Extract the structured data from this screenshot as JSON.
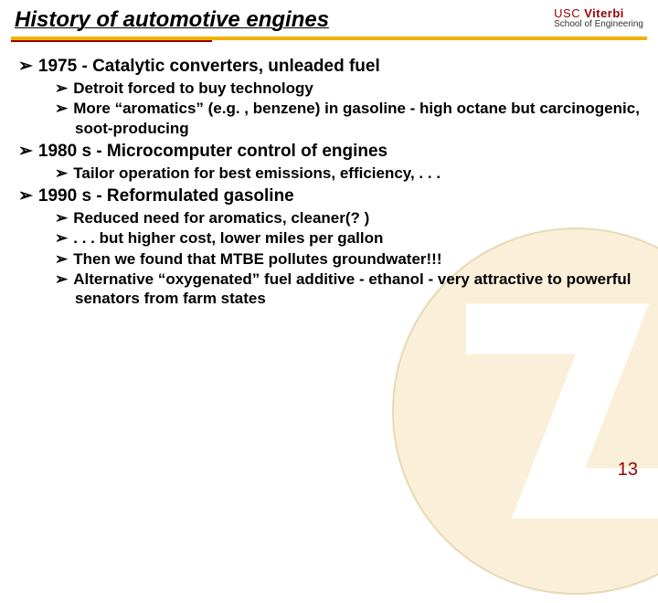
{
  "header": {
    "title": "History of automotive engines",
    "logo_line1_prefix": "USC ",
    "logo_line1_bold": "Viterbi",
    "logo_line2": "School of Engineering"
  },
  "bullets": [
    {
      "level": 1,
      "text": "1975 - Catalytic converters, unleaded fuel"
    },
    {
      "level": 2,
      "text": "Detroit forced to buy technology"
    },
    {
      "level": 2,
      "text": "More “aromatics” (e.g. , benzene) in gasoline - high octane but carcinogenic, soot-producing"
    },
    {
      "level": 1,
      "text": "1980 s - Microcomputer control of engines"
    },
    {
      "level": 2,
      "text": "Tailor operation for best emissions, efficiency, . . ."
    },
    {
      "level": 1,
      "text": "1990 s - Reformulated gasoline"
    },
    {
      "level": 2,
      "text": "Reduced need for aromatics, cleaner(? )"
    },
    {
      "level": 2,
      "text": ". . . but higher cost, lower miles per gallon"
    },
    {
      "level": 2,
      "text": "Then we found that MTBE pollutes groundwater!!!"
    },
    {
      "level": 2,
      "text": "Alternative “oxygenated” fuel additive - ethanol - very attractive to powerful senators from farm states"
    }
  ],
  "page_number": "13",
  "colors": {
    "cardinal": "#990000",
    "gold": "#f2b200",
    "watermark_fill": "#faefd8",
    "watermark_stroke": "#e8d9b5"
  }
}
